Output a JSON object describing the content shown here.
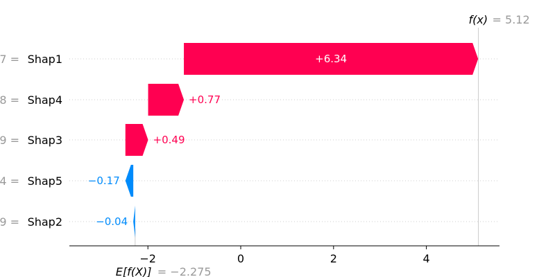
{
  "chart_data": {
    "type": "waterfall",
    "base_value": -2.275,
    "base_value_label": "= −2.275",
    "base_value_key": "E[f(X)]",
    "output_value": 5.12,
    "output_value_label": "= 5.12",
    "output_value_key": "f(x)",
    "features": [
      {
        "name": "Shap1",
        "value_label": "7 =",
        "shap": 6.34,
        "label": "+6.34"
      },
      {
        "name": "Shap4",
        "value_label": "8 =",
        "shap": 0.77,
        "label": "+0.77"
      },
      {
        "name": "Shap3",
        "value_label": "9 =",
        "shap": 0.49,
        "label": "+0.49"
      },
      {
        "name": "Shap5",
        "value_label": "4 =",
        "shap": -0.17,
        "label": "−0.17"
      },
      {
        "name": "Shap2",
        "value_label": "9 =",
        "shap": -0.04,
        "label": "−0.04"
      }
    ],
    "xlim": [
      -3.75,
      5.6
    ],
    "xticks": [
      -2,
      0,
      2,
      4
    ],
    "xtick_labels": [
      "−2",
      "0",
      "2",
      "4"
    ],
    "grid": "horizontal dotted",
    "colors": {
      "positive": "#ff0051",
      "negative": "#008bfb",
      "muted": "#999999",
      "grid": "#cccccc"
    }
  }
}
